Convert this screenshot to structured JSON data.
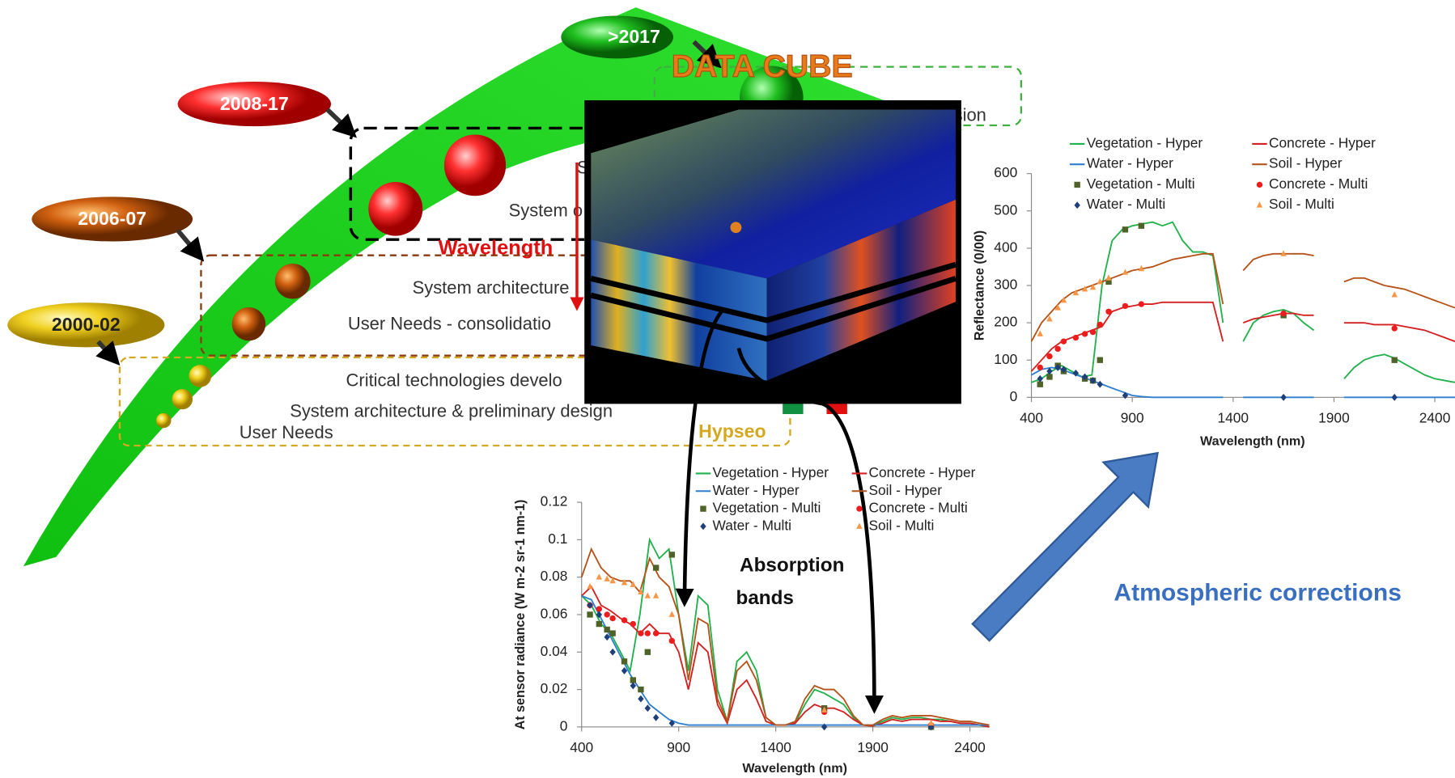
{
  "chart_data": [
    {
      "type": "line",
      "y_label": "Reflectance (0/00)",
      "x_label": "Wavelength (nm)",
      "xlim": [
        400,
        2500
      ],
      "ylim": [
        0,
        600
      ],
      "xticks": [
        400,
        900,
        1400,
        1900,
        2400
      ],
      "yticks": [
        0,
        100,
        200,
        300,
        400,
        500,
        600
      ],
      "grid": false,
      "x": [
        400,
        450,
        500,
        550,
        600,
        650,
        700,
        750,
        800,
        850,
        900,
        950,
        1000,
        1050,
        1100,
        1150,
        1200,
        1250,
        1300,
        1350,
        1400,
        1450,
        1500,
        1550,
        1600,
        1650,
        1700,
        1750,
        1800,
        1850,
        1900,
        1950,
        2000,
        2050,
        2100,
        2150,
        2200,
        2250,
        2300,
        2350,
        2400,
        2450,
        2500
      ],
      "series": [
        {
          "name": "Vegetation - Hyper",
          "color": "#22b14c",
          "values": [
            40,
            50,
            70,
            85,
            70,
            55,
            60,
            300,
            420,
            450,
            460,
            465,
            470,
            460,
            470,
            420,
            390,
            390,
            380,
            200,
            null,
            150,
            200,
            220,
            230,
            235,
            225,
            200,
            180,
            null,
            null,
            50,
            80,
            100,
            110,
            115,
            105,
            90,
            75,
            60,
            50,
            45,
            40
          ]
        },
        {
          "name": "Concrete - Hyper",
          "color": "#d42020",
          "values": [
            70,
            100,
            130,
            150,
            160,
            170,
            180,
            190,
            230,
            240,
            245,
            250,
            250,
            255,
            255,
            255,
            255,
            255,
            255,
            150,
            null,
            200,
            210,
            215,
            220,
            225,
            225,
            220,
            220,
            null,
            null,
            200,
            200,
            200,
            195,
            195,
            195,
            190,
            185,
            180,
            170,
            160,
            150
          ]
        },
        {
          "name": "Water - Hyper",
          "color": "#2f7fd0",
          "values": [
            60,
            75,
            80,
            75,
            65,
            55,
            45,
            35,
            25,
            15,
            5,
            2,
            0,
            0,
            0,
            0,
            0,
            0,
            0,
            0,
            null,
            0,
            0,
            0,
            0,
            0,
            0,
            0,
            0,
            null,
            null,
            0,
            0,
            0,
            0,
            0,
            0,
            0,
            0,
            0,
            0,
            0,
            0
          ]
        },
        {
          "name": "Soil - Hyper",
          "color": "#b5531a",
          "values": [
            150,
            200,
            230,
            260,
            280,
            290,
            300,
            310,
            320,
            330,
            340,
            345,
            350,
            360,
            370,
            375,
            380,
            385,
            385,
            250,
            null,
            340,
            370,
            380,
            385,
            385,
            385,
            385,
            380,
            null,
            null,
            310,
            320,
            320,
            310,
            300,
            295,
            290,
            280,
            270,
            260,
            250,
            240
          ]
        },
        {
          "name": "Vegetation - Multi",
          "color": "#4f6228",
          "marker": "square",
          "x": [
            443,
            490,
            531,
            560,
            665,
            705,
            740,
            783,
            865,
            945,
            1650,
            2200
          ],
          "values": [
            35,
            55,
            85,
            70,
            50,
            45,
            100,
            310,
            450,
            460,
            220,
            100
          ]
        },
        {
          "name": "Concrete - Multi",
          "color": "#ee1c1c",
          "marker": "circle",
          "x": [
            443,
            490,
            531,
            560,
            620,
            665,
            705,
            740,
            783,
            865,
            945,
            1650,
            2200
          ],
          "values": [
            80,
            110,
            130,
            150,
            160,
            170,
            175,
            195,
            230,
            245,
            250,
            225,
            185
          ]
        },
        {
          "name": "Water - Multi",
          "color": "#1f3f7a",
          "marker": "diamond",
          "x": [
            443,
            490,
            531,
            560,
            620,
            665,
            705,
            740,
            865,
            1650,
            2200
          ],
          "values": [
            50,
            70,
            80,
            75,
            65,
            55,
            45,
            35,
            5,
            0,
            0
          ]
        },
        {
          "name": "Soil - Multi",
          "color": "#f79646",
          "marker": "triangle",
          "x": [
            443,
            490,
            531,
            560,
            620,
            665,
            705,
            740,
            783,
            865,
            945,
            1650,
            2200
          ],
          "values": [
            170,
            210,
            240,
            260,
            280,
            290,
            295,
            310,
            320,
            335,
            345,
            385,
            275
          ]
        }
      ]
    },
    {
      "type": "line",
      "y_label": "At sensor radiance (W m-2 sr-1 nm-1)",
      "x_label": "Wavelength (nm)",
      "xlim": [
        400,
        2500
      ],
      "ylim": [
        0,
        0.12
      ],
      "xticks": [
        400,
        900,
        1400,
        1900,
        2400
      ],
      "yticks": [
        0,
        0.02,
        0.04,
        0.06,
        0.08,
        0.1,
        0.12
      ],
      "grid": false,
      "x": [
        400,
        450,
        500,
        550,
        600,
        650,
        700,
        750,
        800,
        850,
        900,
        950,
        1000,
        1050,
        1100,
        1150,
        1200,
        1250,
        1300,
        1350,
        1400,
        1450,
        1500,
        1550,
        1600,
        1650,
        1700,
        1750,
        1800,
        1850,
        1900,
        1950,
        2000,
        2050,
        2100,
        2150,
        2200,
        2250,
        2300,
        2350,
        2400,
        2450,
        2500
      ],
      "series": [
        {
          "name": "Vegetation - Hyper",
          "color": "#22b14c",
          "values": [
            0.07,
            0.065,
            0.055,
            0.05,
            0.04,
            0.03,
            0.06,
            0.1,
            0.09,
            0.095,
            0.06,
            0.03,
            0.07,
            0.065,
            0.02,
            0.003,
            0.035,
            0.04,
            0.03,
            0.005,
            0.001,
            0.001,
            0.002,
            0.012,
            0.02,
            0.018,
            0.015,
            0.012,
            0.005,
            0.001,
            0.0005,
            0.003,
            0.005,
            0.004,
            0.005,
            0.005,
            0.004,
            0.004,
            0.003,
            0.002,
            0.002,
            0.001,
            0
          ]
        },
        {
          "name": "Concrete - Hyper",
          "color": "#d42020",
          "values": [
            0.07,
            0.075,
            0.065,
            0.062,
            0.058,
            0.055,
            0.05,
            0.055,
            0.05,
            0.05,
            0.04,
            0.02,
            0.045,
            0.04,
            0.012,
            0.002,
            0.02,
            0.025,
            0.015,
            0.003,
            0.001,
            0.001,
            0.002,
            0.008,
            0.012,
            0.01,
            0.01,
            0.008,
            0.004,
            0.001,
            0.0005,
            0.002,
            0.004,
            0.003,
            0.004,
            0.004,
            0.004,
            0.003,
            0.003,
            0.002,
            0.002,
            0.001,
            0
          ]
        },
        {
          "name": "Water - Hyper",
          "color": "#2f7fd0",
          "values": [
            0.07,
            0.068,
            0.058,
            0.048,
            0.038,
            0.028,
            0.02,
            0.012,
            0.008,
            0.004,
            0.002,
            0.001,
            0.001,
            0.001,
            0.001,
            0.001,
            0.001,
            0.001,
            0.001,
            0.001,
            0.001,
            0.001,
            0.001,
            0.001,
            0.001,
            0.001,
            0.001,
            0.001,
            0.001,
            0.001,
            0.001,
            0.001,
            0.001,
            0.001,
            0.001,
            0.001,
            0.001,
            0.001,
            0.001,
            0.001,
            0.001,
            0.001,
            0.001
          ]
        },
        {
          "name": "Soil - Hyper",
          "color": "#b5531a",
          "values": [
            0.08,
            0.095,
            0.085,
            0.08,
            0.078,
            0.078,
            0.072,
            0.09,
            0.08,
            0.075,
            0.06,
            0.025,
            0.058,
            0.055,
            0.015,
            0.003,
            0.03,
            0.035,
            0.025,
            0.005,
            0.001,
            0.001,
            0.003,
            0.015,
            0.022,
            0.02,
            0.02,
            0.015,
            0.006,
            0.001,
            0.001,
            0.004,
            0.006,
            0.005,
            0.006,
            0.006,
            0.006,
            0.005,
            0.004,
            0.003,
            0.003,
            0.002,
            0.001
          ]
        },
        {
          "name": "Vegetation - Multi",
          "color": "#4f6228",
          "marker": "square",
          "x": [
            443,
            490,
            531,
            560,
            620,
            665,
            705,
            740,
            783,
            865,
            1650,
            2200
          ],
          "values": [
            0.06,
            0.055,
            0.052,
            0.05,
            0.035,
            0.025,
            0.02,
            0.04,
            0.085,
            0.092,
            0.01,
            0
          ]
        },
        {
          "name": "Concrete - Multi",
          "color": "#ee1c1c",
          "marker": "circle",
          "x": [
            443,
            490,
            531,
            560,
            620,
            665,
            705,
            740,
            783,
            865,
            1650,
            2200
          ],
          "values": [
            0.065,
            0.063,
            0.06,
            0.058,
            0.057,
            0.055,
            0.05,
            0.05,
            0.05,
            0.046,
            0.008,
            0.001
          ]
        },
        {
          "name": "Water - Multi",
          "color": "#1f3f7a",
          "marker": "diamond",
          "x": [
            443,
            490,
            531,
            560,
            620,
            665,
            705,
            740,
            783,
            865,
            1650,
            2200
          ],
          "values": [
            0.065,
            0.06,
            0.048,
            0.04,
            0.03,
            0.022,
            0.015,
            0.01,
            0.005,
            0.002,
            0,
            0
          ]
        },
        {
          "name": "Soil - Multi",
          "color": "#f79646",
          "marker": "triangle",
          "x": [
            443,
            490,
            531,
            560,
            620,
            665,
            705,
            740,
            783,
            865,
            1650,
            2200
          ],
          "values": [
            0.075,
            0.08,
            0.079,
            0.078,
            0.077,
            0.076,
            0.072,
            0.07,
            0.07,
            0.06,
            0.009,
            0.002
          ]
        }
      ]
    }
  ],
  "diagram": {
    "periods": [
      ">2017",
      "2008-17",
      "2006-07",
      "2000-02"
    ],
    "cube_title": "DATA CUBE",
    "phase_labels": [
      "sion",
      "S",
      "System o",
      "System architecture",
      "User Needs  - consolidatio",
      "Critical technologies develo",
      "System architecture & preliminary design",
      "User Needs"
    ],
    "mission": "Hypseo",
    "wavelength": "Wavelength",
    "absorption": [
      "Absorption",
      "bands"
    ],
    "atmospheric": "Atmospheric corrections"
  }
}
